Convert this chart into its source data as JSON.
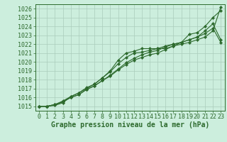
{
  "title": "Graphe pression niveau de la mer (hPa)",
  "xlabel_hours": [
    0,
    1,
    2,
    3,
    4,
    5,
    6,
    7,
    8,
    9,
    10,
    11,
    12,
    13,
    14,
    15,
    16,
    17,
    18,
    19,
    20,
    21,
    22,
    23
  ],
  "series": [
    [
      1015.0,
      1015.0,
      1015.1,
      1015.4,
      1016.1,
      1016.5,
      1017.0,
      1017.5,
      1018.2,
      1019.0,
      1020.2,
      1021.0,
      1021.2,
      1021.5,
      1021.5,
      1021.5,
      1021.5,
      1021.8,
      1022.2,
      1023.1,
      1023.3,
      1024.0,
      1025.0,
      1025.8
    ],
    [
      1015.0,
      1015.0,
      1015.2,
      1015.6,
      1016.1,
      1016.5,
      1017.1,
      1017.5,
      1018.2,
      1018.9,
      1019.8,
      1020.5,
      1021.0,
      1021.1,
      1021.3,
      1021.5,
      1021.8,
      1022.0,
      1022.2,
      1022.5,
      1022.8,
      1023.5,
      1024.3,
      1022.5
    ],
    [
      1015.0,
      1015.0,
      1015.2,
      1015.5,
      1016.0,
      1016.3,
      1016.9,
      1017.3,
      1017.9,
      1018.5,
      1019.2,
      1019.9,
      1020.4,
      1020.8,
      1021.1,
      1021.3,
      1021.7,
      1022.0,
      1022.2,
      1022.5,
      1022.8,
      1023.2,
      1023.8,
      1022.2
    ],
    [
      1015.0,
      1015.0,
      1015.2,
      1015.5,
      1016.0,
      1016.3,
      1016.9,
      1017.3,
      1017.9,
      1018.4,
      1019.1,
      1019.7,
      1020.2,
      1020.5,
      1020.8,
      1021.0,
      1021.4,
      1021.8,
      1022.0,
      1022.2,
      1022.5,
      1022.8,
      1023.5,
      1026.2
    ]
  ],
  "line_color": "#2d6a2d",
  "marker": "D",
  "marker_size": 2.2,
  "bg_color": "#cceedd",
  "grid_color": "#aaccbb",
  "ylim": [
    1014.5,
    1026.5
  ],
  "yticks": [
    1015,
    1016,
    1017,
    1018,
    1019,
    1020,
    1021,
    1022,
    1023,
    1024,
    1025,
    1026
  ],
  "xlim": [
    -0.5,
    23.5
  ],
  "tick_fontsize": 6,
  "label_fontsize": 7,
  "line_width": 0.8
}
